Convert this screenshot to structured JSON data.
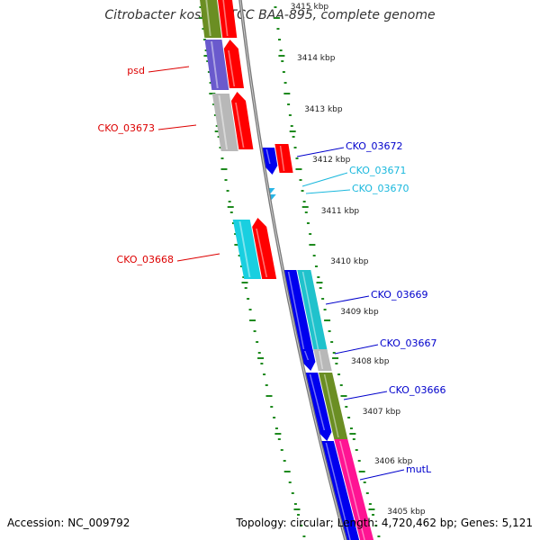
{
  "title": "Citrobacter koseri ATCC BAA-895, complete genome",
  "accession": "Accession: NC_009792",
  "topology": "Topology: circular; Length: 4,720,462 bp; Genes: 5,121",
  "colors": {
    "tick": "#1e8a1e",
    "backbone": "#888888",
    "red": "#ff0000",
    "blue": "#0000ee",
    "cyan": "#19cfe0",
    "lightblue": "#29b6e6",
    "olive": "#6b8e23",
    "purple": "#6a5acd",
    "gray": "#b8b8b8",
    "pink": "#ff1493"
  },
  "kbp_ticks": [
    "3415 kbp",
    "3414 kbp",
    "3413 kbp",
    "3412 kbp",
    "3411 kbp",
    "3410 kbp",
    "3409 kbp",
    "3408 kbp",
    "3407 kbp",
    "3406 kbp",
    "3405 kbp"
  ],
  "gene_labels": [
    {
      "text": "psd",
      "color": "#dd0000"
    },
    {
      "text": "CKO_03673",
      "color": "#dd0000"
    },
    {
      "text": "CKO_03668",
      "color": "#dd0000"
    },
    {
      "text": "CKO_03672",
      "color": "#0000cc"
    },
    {
      "text": "CKO_03671",
      "color": "#1ab8dd"
    },
    {
      "text": "CKO_03670",
      "color": "#1ab8dd"
    },
    {
      "text": "CKO_03669",
      "color": "#0000cc"
    },
    {
      "text": "CKO_03667",
      "color": "#0000cc"
    },
    {
      "text": "CKO_03666",
      "color": "#0000cc"
    },
    {
      "text": "mutL",
      "color": "#0000cc"
    }
  ]
}
